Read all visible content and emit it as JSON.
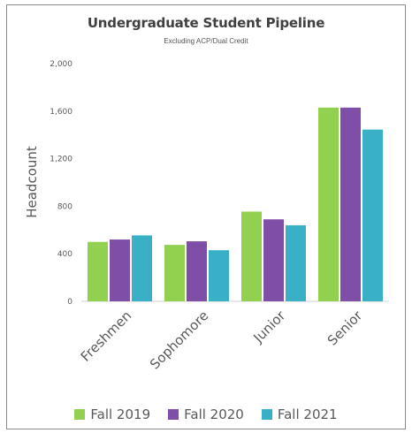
{
  "chart_data": {
    "type": "bar",
    "title": "Undergraduate Student Pipeline",
    "subtitle": "Excluding ACP/Dual Credit",
    "ylabel": "Headcount",
    "xlabel": "",
    "categories": [
      "Freshmen",
      "Sophomore",
      "Junior",
      "Senior"
    ],
    "ylim": [
      0,
      2000
    ],
    "yticks": [
      0,
      400,
      800,
      1200,
      1600,
      2000
    ],
    "ytick_labels": [
      "0",
      "400",
      "800",
      "1,200",
      "1,600",
      "2,000"
    ],
    "grid": false,
    "legend_position": "bottom",
    "series": [
      {
        "name": "Fall 2019",
        "color": "#92d050",
        "values": [
          500,
          475,
          755,
          1630
        ]
      },
      {
        "name": "Fall 2020",
        "color": "#7f4fa8",
        "values": [
          520,
          505,
          690,
          1630
        ]
      },
      {
        "name": "Fall 2021",
        "color": "#3ab0c6",
        "values": [
          555,
          430,
          640,
          1445
        ]
      }
    ]
  }
}
